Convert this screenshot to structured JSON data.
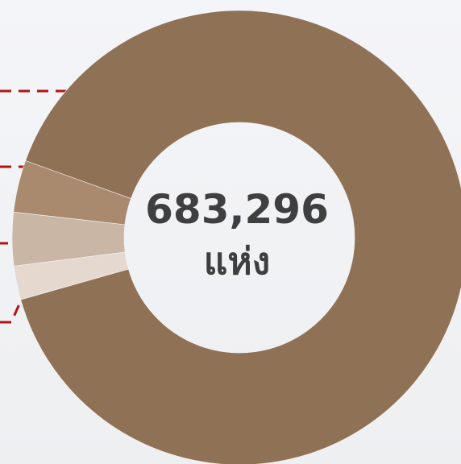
{
  "chart_data": {
    "type": "donut",
    "center_text": [
      "683,296",
      "แห่ง"
    ],
    "values": [
      90.1,
      2.4,
      3.8,
      3.7
    ],
    "colors": [
      "#8f7155",
      "#e5d9cf",
      "#cab6a5",
      "#a98a6e"
    ]
  }
}
